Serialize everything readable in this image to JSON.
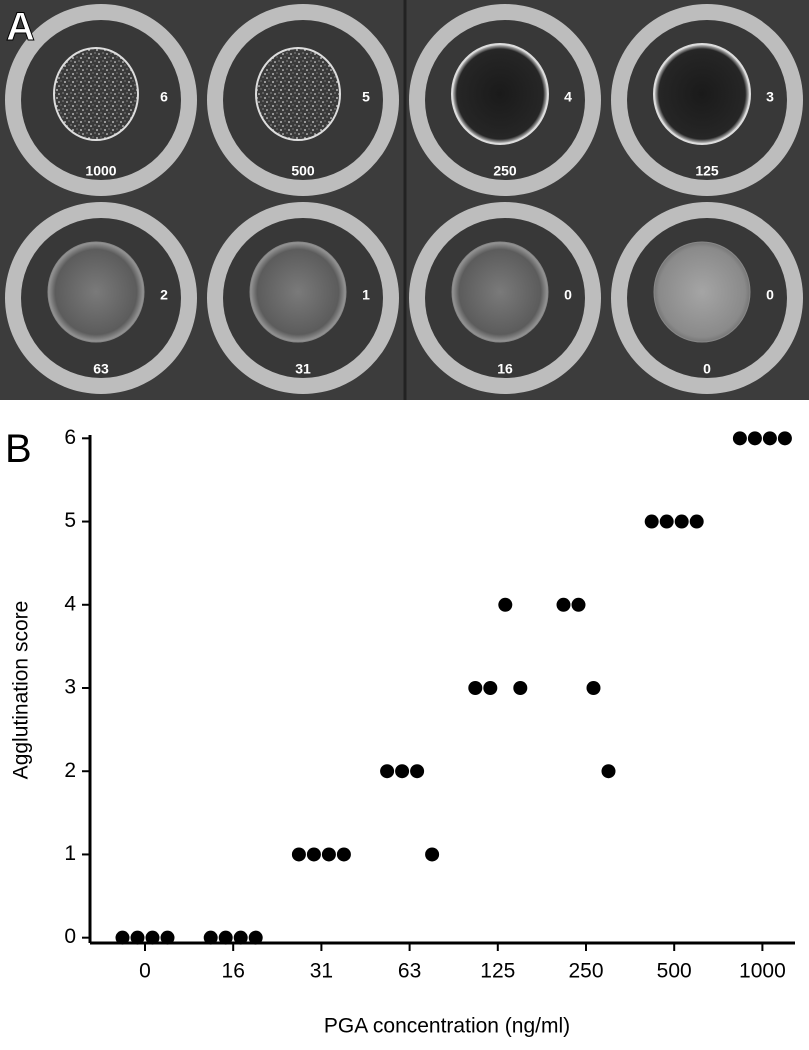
{
  "panel_a": {
    "label": "A",
    "wells": [
      {
        "score": 6,
        "concentration": 1000
      },
      {
        "score": 5,
        "concentration": 500
      },
      {
        "score": 4,
        "concentration": 250
      },
      {
        "score": 3,
        "concentration": 125
      },
      {
        "score": 2,
        "concentration": 63
      },
      {
        "score": 1,
        "concentration": 31
      },
      {
        "score": 0,
        "concentration": 16
      },
      {
        "score": 0,
        "concentration": 0
      }
    ]
  },
  "chart_data": {
    "type": "dot",
    "panel_label": "B",
    "x_label": "PGA concentration (ng/ml)",
    "y_label": "Agglutination score",
    "categories": [
      "0",
      "16",
      "31",
      "63",
      "125",
      "250",
      "500",
      "1000"
    ],
    "values": [
      [
        0,
        0,
        0,
        0
      ],
      [
        0,
        0,
        0,
        0
      ],
      [
        1,
        1,
        1,
        1
      ],
      [
        2,
        2,
        2,
        1
      ],
      [
        3,
        3,
        4,
        3
      ],
      [
        4,
        4,
        3,
        2
      ],
      [
        5,
        5,
        5,
        5
      ],
      [
        6,
        6,
        6,
        6
      ]
    ],
    "color": "#000000",
    "ylim": [
      -0.1,
      6.1
    ],
    "yticks": [
      0,
      1,
      2,
      3,
      4,
      5,
      6
    ]
  }
}
